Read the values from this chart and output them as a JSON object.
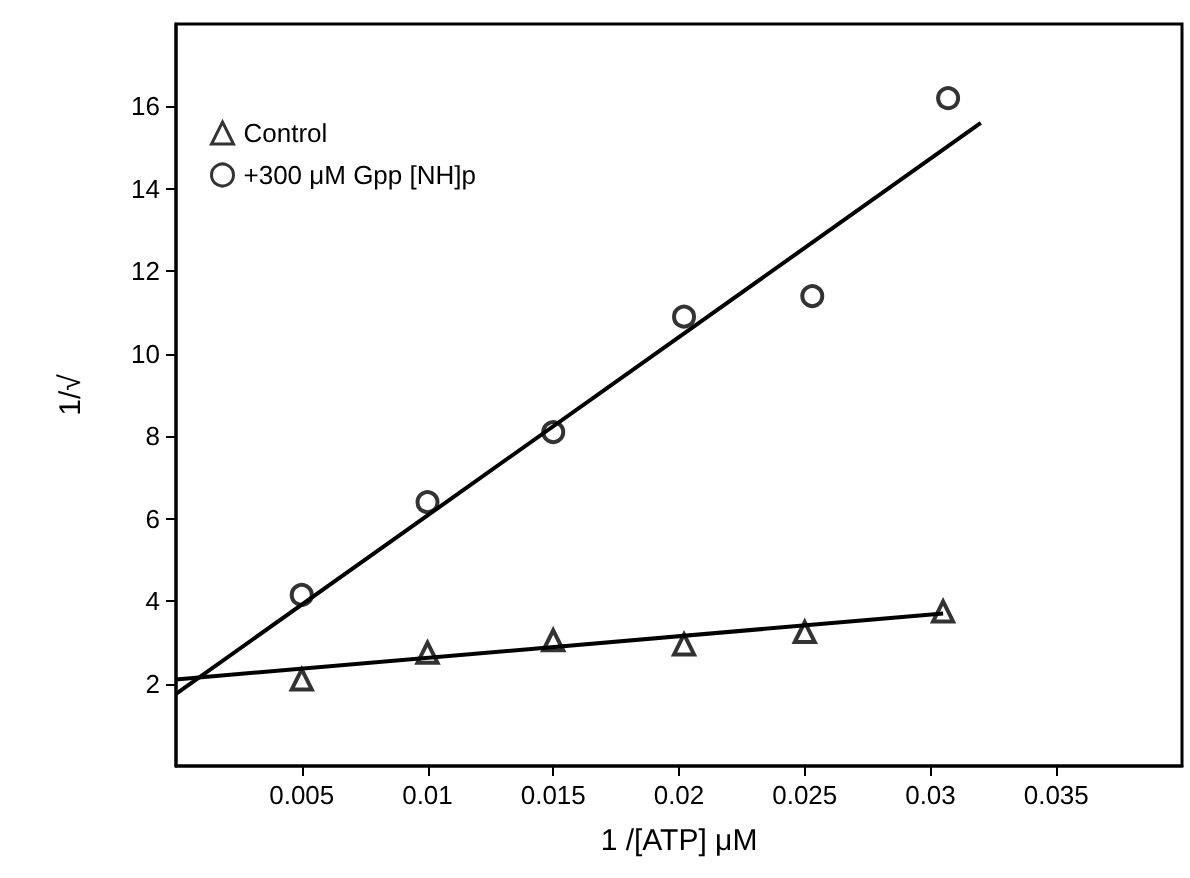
{
  "chart_data": {
    "type": "scatter",
    "xlabel": "1 /[ATP] μM",
    "ylabel": "1/√",
    "xlim": [
      0,
      0.04
    ],
    "ylim": [
      0,
      18
    ],
    "xticks": [
      0.005,
      0.01,
      0.015,
      0.02,
      0.025,
      0.03,
      0.035
    ],
    "yticks": [
      2,
      4,
      6,
      8,
      10,
      12,
      14,
      16
    ],
    "grid": false,
    "legend": "top left",
    "series": [
      {
        "name": "Control",
        "color": "#000000",
        "marker": "triangle",
        "x": [
          0.005,
          0.01,
          0.015,
          0.0202,
          0.025,
          0.0305
        ],
        "values": [
          2.1,
          2.75,
          3.05,
          2.95,
          3.25,
          3.75
        ]
      },
      {
        "name": "+300 μM Gpp [NH]p",
        "color": "#000000",
        "marker": "circle",
        "x": [
          0.005,
          0.01,
          0.015,
          0.0202,
          0.0253,
          0.0307
        ],
        "values": [
          4.15,
          6.4,
          8.1,
          10.9,
          11.4,
          16.2
        ]
      },
      {
        "type": "line",
        "color": "#000000",
        "marker": "none",
        "x": [
          0,
          0.0305
        ],
        "values": [
          2.1,
          3.7
        ]
      },
      {
        "type": "line",
        "color": "#000000",
        "marker": "none",
        "x": [
          0,
          0.032
        ],
        "values": [
          1.75,
          15.6
        ]
      }
    ]
  }
}
